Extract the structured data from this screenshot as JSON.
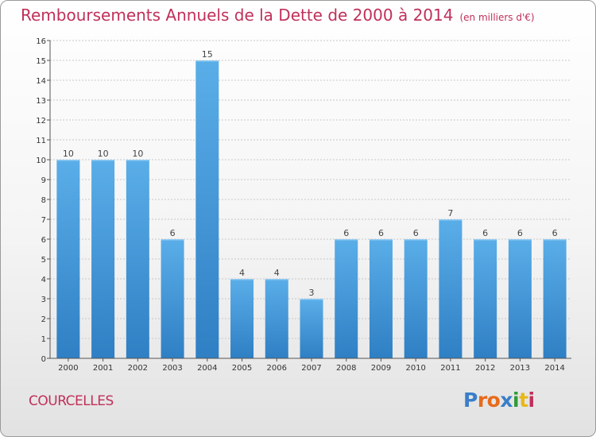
{
  "title": "Remboursements Annuels de la Dette de 2000 à 2014",
  "unit": "(en milliers d'€)",
  "commune": "COURCELLES",
  "logo": {
    "text": "Proxiti",
    "letters": [
      {
        "ch": "P",
        "color": "#3a7ec8"
      },
      {
        "ch": "r",
        "color": "#e86a1a"
      },
      {
        "ch": "o",
        "color": "#e86a1a"
      },
      {
        "ch": "x",
        "color": "#3a7ec8"
      },
      {
        "ch": "i",
        "color": "#2f9a3a"
      },
      {
        "ch": "t",
        "color": "#e8b81a"
      },
      {
        "ch": "i",
        "color": "#c0305a"
      }
    ]
  },
  "colors": {
    "bar": "#3f94d8",
    "bar_light": "#5aaee8",
    "title": "#c0305a",
    "grid": "#c8c8c8"
  },
  "chart_data": {
    "type": "bar",
    "categories": [
      "2000",
      "2001",
      "2002",
      "2003",
      "2004",
      "2005",
      "2006",
      "2007",
      "2008",
      "2009",
      "2010",
      "2011",
      "2012",
      "2013",
      "2014"
    ],
    "values": [
      10,
      10,
      10,
      6,
      15,
      4,
      4,
      3,
      6,
      6,
      6,
      7,
      6,
      6,
      6
    ],
    "ylim": [
      0,
      16
    ],
    "yticks": [
      "0",
      "1",
      "2",
      "3",
      "4",
      "5",
      "6",
      "7",
      "8",
      "9",
      "10",
      "11",
      "12",
      "13",
      "14",
      "15",
      "16"
    ],
    "grid": true,
    "data_labels": true
  }
}
